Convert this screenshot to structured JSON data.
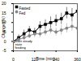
{
  "chart_data": {
    "type": "line",
    "x_label": "Time (min)",
    "y_label": "Change (%)",
    "annotation": "Start steady state feeding",
    "x": [
      0,
      30,
      60,
      90,
      120,
      150,
      180,
      210,
      240,
      270,
      300,
      330,
      360
    ],
    "series": [
      {
        "name": "Fasted",
        "color": "#000000",
        "marker": "square",
        "values": [
          0,
          2,
          4,
          6,
          5,
          8,
          9,
          10,
          11,
          12,
          15,
          14,
          16
        ],
        "errors": [
          1,
          1.5,
          2,
          2,
          2,
          2.5,
          2.5,
          3,
          3,
          3,
          3,
          3.5,
          3.5
        ]
      },
      {
        "name": "Fed",
        "color": "#888888",
        "marker": "circle",
        "values": [
          0,
          1,
          2,
          3,
          4,
          4,
          5,
          6,
          5,
          6,
          7,
          8,
          7
        ],
        "errors": [
          1,
          1,
          1.5,
          1.5,
          2,
          2,
          2,
          2,
          2,
          2.5,
          2.5,
          2.5,
          2.5
        ]
      }
    ],
    "xlim": [
      0,
      360
    ],
    "xticks": [
      0,
      120,
      240,
      360
    ],
    "ylim": [
      -5,
      20
    ],
    "yticks": [
      -5,
      0,
      5,
      10,
      15,
      20
    ],
    "legend": "top-left"
  }
}
